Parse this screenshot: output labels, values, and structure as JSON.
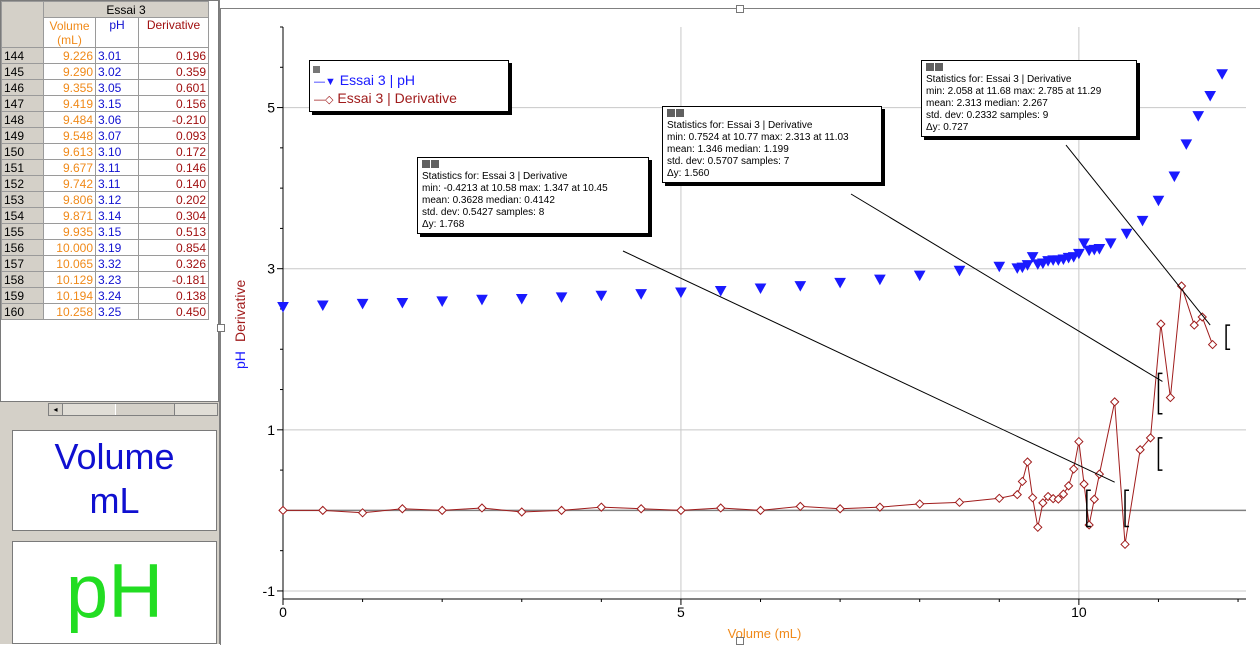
{
  "table": {
    "group_title": "Essai 3",
    "col_volume": "Volume (mL)",
    "col_ph": "pH",
    "col_derivative": "Derivative",
    "rows": [
      [
        "144",
        "9.226",
        "3.01",
        "0.196"
      ],
      [
        "145",
        "9.290",
        "3.02",
        "0.359"
      ],
      [
        "146",
        "9.355",
        "3.05",
        "0.601"
      ],
      [
        "147",
        "9.419",
        "3.15",
        "0.156"
      ],
      [
        "148",
        "9.484",
        "3.06",
        "-0.210"
      ],
      [
        "149",
        "9.548",
        "3.07",
        "0.093"
      ],
      [
        "150",
        "9.613",
        "3.10",
        "0.172"
      ],
      [
        "151",
        "9.677",
        "3.11",
        "0.146"
      ],
      [
        "152",
        "9.742",
        "3.11",
        "0.140"
      ],
      [
        "153",
        "9.806",
        "3.12",
        "0.202"
      ],
      [
        "154",
        "9.871",
        "3.14",
        "0.304"
      ],
      [
        "155",
        "9.935",
        "3.15",
        "0.513"
      ],
      [
        "156",
        "10.000",
        "3.19",
        "0.854"
      ],
      [
        "157",
        "10.065",
        "3.32",
        "0.326"
      ],
      [
        "158",
        "10.129",
        "3.23",
        "-0.181"
      ],
      [
        "159",
        "10.194",
        "3.24",
        "0.138"
      ],
      [
        "160",
        "10.258",
        "3.25",
        "0.450"
      ]
    ],
    "scroll_left_icon": "arrow-left-icon"
  },
  "meters": {
    "volume_label": "Volume",
    "volume_unit": "mL",
    "ph_label": "pH"
  },
  "graph": {
    "legend": {
      "ph": "Essai 3 | pH",
      "derivative": "Essai 3 | Derivative"
    },
    "y_label_ph": "pH",
    "y_label_derivative": "Derivative",
    "x_label": "Volume (mL)",
    "colors": {
      "ph": "#1a1aff",
      "derivative": "#a01c1c",
      "grid": "#c8c8c8",
      "volume": "#f08a1a"
    }
  },
  "stats": [
    {
      "l1": "Statistics for: Essai 3 | Derivative",
      "l2": "min: -0.4213 at 10.58 max: 1.347 at 10.45",
      "l3": "mean: 0.3628 median: 0.4142",
      "l4": "std. dev: 0.5427 samples: 8",
      "l5": "Δy: 1.768"
    },
    {
      "l1": "Statistics for: Essai 3 | Derivative",
      "l2": "min: 0.7524 at 10.77 max: 2.313 at 11.03",
      "l3": "mean: 1.346 median: 1.199",
      "l4": "std. dev: 0.5707 samples: 7",
      "l5": "Δy: 1.560"
    },
    {
      "l1": "Statistics for: Essai 3 | Derivative",
      "l2": "min: 2.058 at 11.68 max: 2.785 at 11.29",
      "l3": "mean: 2.313 median: 2.267",
      "l4": "std. dev: 0.2332 samples: 9",
      "l5": "Δy: 0.727"
    }
  ],
  "chart_data": {
    "type": "scatter",
    "xlabel": "Volume (mL)",
    "ylabel": "pH Derivative",
    "xlim": [
      0,
      12.1
    ],
    "ylim": [
      -1.1,
      6.0
    ],
    "x_ticks": [
      "0",
      "5",
      "10"
    ],
    "y_ticks": [
      "-1",
      "1",
      "3",
      "5"
    ],
    "grid": true,
    "legend_position": "top-left",
    "series": [
      {
        "name": "Essai 3 | pH",
        "marker": "triangle-down",
        "points": [
          [
            0,
            2.53
          ],
          [
            0.5,
            2.55
          ],
          [
            1,
            2.57
          ],
          [
            1.5,
            2.58
          ],
          [
            2,
            2.6
          ],
          [
            2.5,
            2.62
          ],
          [
            3,
            2.63
          ],
          [
            3.5,
            2.65
          ],
          [
            4,
            2.67
          ],
          [
            4.5,
            2.69
          ],
          [
            5,
            2.71
          ],
          [
            5.5,
            2.73
          ],
          [
            6,
            2.76
          ],
          [
            6.5,
            2.79
          ],
          [
            7,
            2.83
          ],
          [
            7.5,
            2.87
          ],
          [
            8,
            2.92
          ],
          [
            8.5,
            2.98
          ],
          [
            9,
            3.03
          ],
          [
            9.226,
            3.01
          ],
          [
            9.29,
            3.02
          ],
          [
            9.355,
            3.05
          ],
          [
            9.419,
            3.15
          ],
          [
            9.484,
            3.06
          ],
          [
            9.548,
            3.07
          ],
          [
            9.613,
            3.1
          ],
          [
            9.677,
            3.11
          ],
          [
            9.742,
            3.11
          ],
          [
            9.806,
            3.12
          ],
          [
            9.871,
            3.14
          ],
          [
            9.935,
            3.15
          ],
          [
            10,
            3.19
          ],
          [
            10.065,
            3.32
          ],
          [
            10.129,
            3.23
          ],
          [
            10.194,
            3.24
          ],
          [
            10.258,
            3.25
          ],
          [
            10.4,
            3.32
          ],
          [
            10.6,
            3.44
          ],
          [
            10.8,
            3.6
          ],
          [
            11,
            3.85
          ],
          [
            11.2,
            4.15
          ],
          [
            11.35,
            4.55
          ],
          [
            11.5,
            4.9
          ],
          [
            11.65,
            5.15
          ],
          [
            11.8,
            5.42
          ]
        ]
      },
      {
        "name": "Essai 3 | Derivative",
        "marker": "diamond-open",
        "points": [
          [
            0,
            0.0
          ],
          [
            0.5,
            0.0
          ],
          [
            1,
            -0.03
          ],
          [
            1.5,
            0.02
          ],
          [
            2,
            0.0
          ],
          [
            2.5,
            0.03
          ],
          [
            3,
            -0.02
          ],
          [
            3.5,
            0.0
          ],
          [
            4,
            0.04
          ],
          [
            4.5,
            0.02
          ],
          [
            5,
            0.0
          ],
          [
            5.5,
            0.03
          ],
          [
            6,
            0.0
          ],
          [
            6.5,
            0.05
          ],
          [
            7,
            0.02
          ],
          [
            7.5,
            0.04
          ],
          [
            8,
            0.08
          ],
          [
            8.5,
            0.1
          ],
          [
            9,
            0.15
          ],
          [
            9.226,
            0.196
          ],
          [
            9.29,
            0.359
          ],
          [
            9.355,
            0.601
          ],
          [
            9.419,
            0.156
          ],
          [
            9.484,
            -0.21
          ],
          [
            9.548,
            0.093
          ],
          [
            9.613,
            0.172
          ],
          [
            9.677,
            0.146
          ],
          [
            9.742,
            0.14
          ],
          [
            9.806,
            0.202
          ],
          [
            9.871,
            0.304
          ],
          [
            9.935,
            0.513
          ],
          [
            10,
            0.854
          ],
          [
            10.065,
            0.326
          ],
          [
            10.129,
            -0.181
          ],
          [
            10.194,
            0.138
          ],
          [
            10.258,
            0.45
          ],
          [
            10.45,
            1.347
          ],
          [
            10.58,
            -0.4213
          ],
          [
            10.77,
            0.7524
          ],
          [
            10.9,
            0.9
          ],
          [
            11.03,
            2.313
          ],
          [
            11.15,
            1.4
          ],
          [
            11.29,
            2.785
          ],
          [
            11.45,
            2.3
          ],
          [
            11.55,
            2.4
          ],
          [
            11.68,
            2.058
          ]
        ]
      }
    ]
  }
}
